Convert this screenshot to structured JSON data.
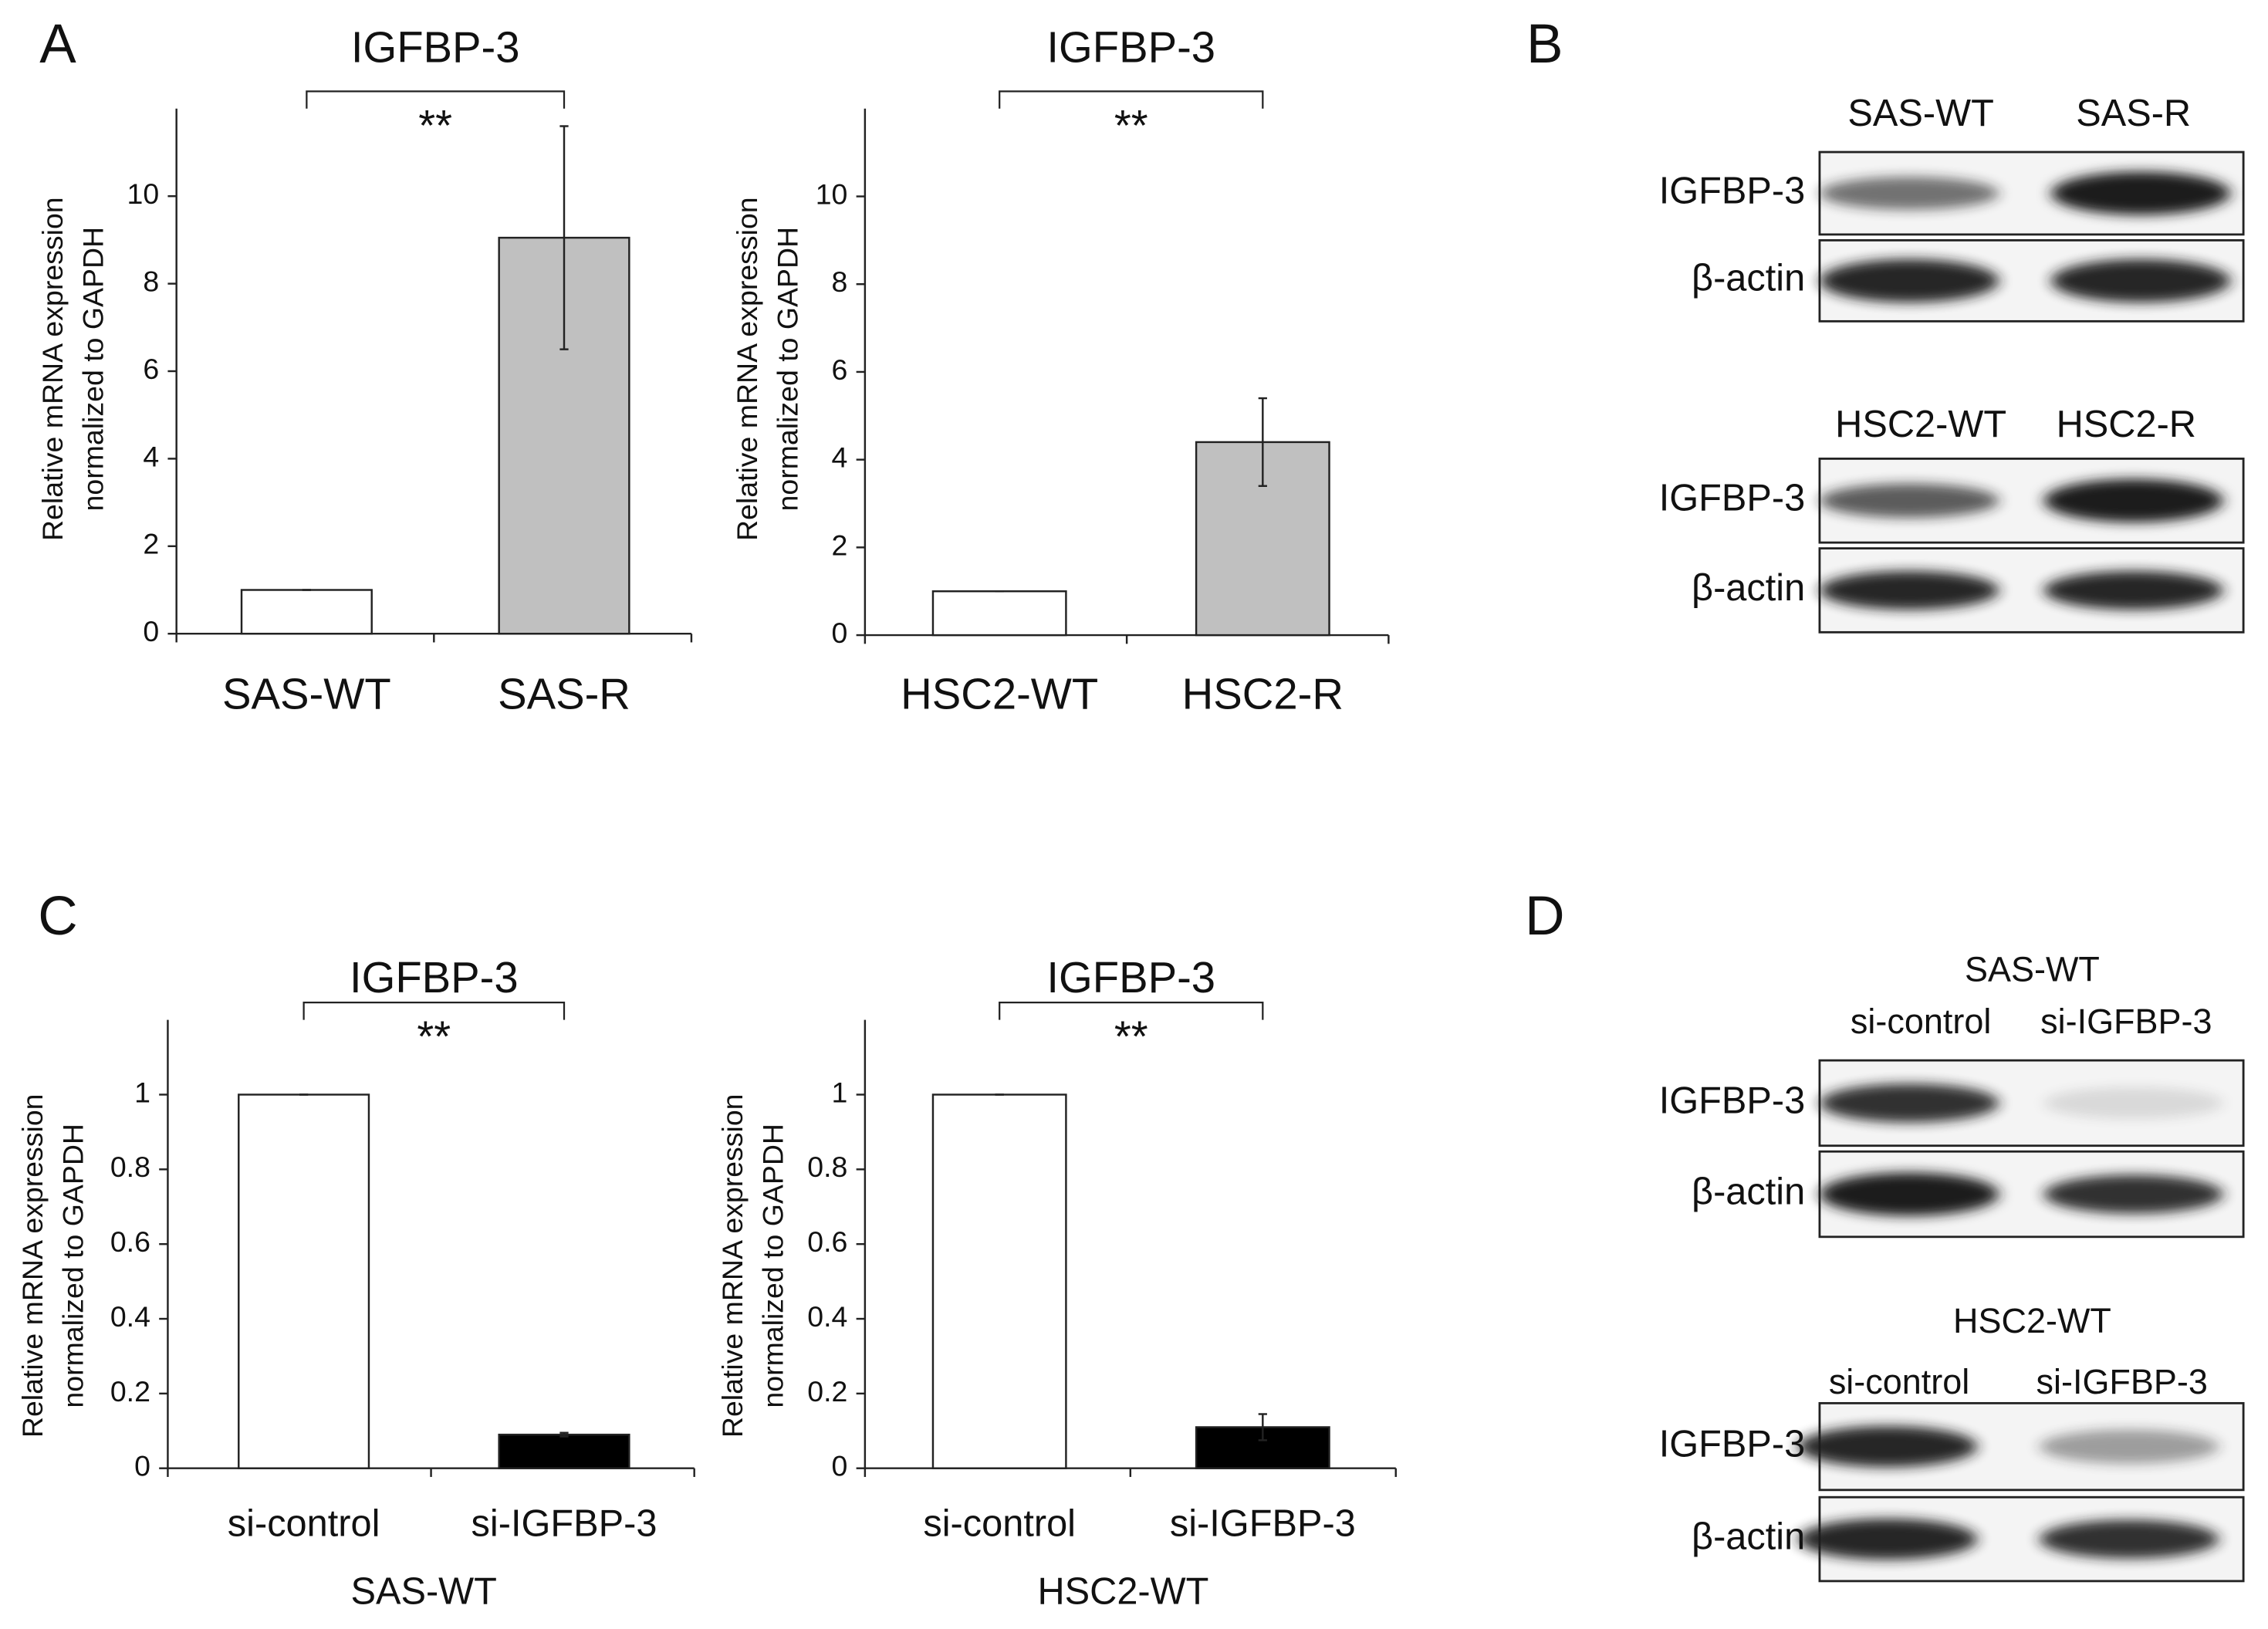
{
  "chart_data": [
    {
      "type": "bar",
      "title": "IGFBP-3",
      "ylabel": [
        "Relative mRNA expression",
        "normalized to GAPDH"
      ],
      "categories": [
        "SAS-WT",
        "SAS-R"
      ],
      "series": [
        {
          "values": [
            1,
            9.05
          ],
          "errors": [
            0,
            2.55
          ],
          "colors": [
            "#ffffff",
            "#c0c0c0"
          ]
        }
      ],
      "ylim": [
        0,
        12
      ],
      "yticks": [
        0,
        2,
        4,
        6,
        8,
        10
      ],
      "annotation": "**"
    },
    {
      "type": "bar",
      "title": "IGFBP-3",
      "ylabel": [
        "Relative mRNA expression",
        "normalized to GAPDH"
      ],
      "categories": [
        "HSC2-WT",
        "HSC2-R"
      ],
      "series": [
        {
          "values": [
            1,
            4.4
          ],
          "errors": [
            0,
            1.0
          ],
          "colors": [
            "#ffffff",
            "#c0c0c0"
          ]
        }
      ],
      "ylim": [
        0,
        12
      ],
      "yticks": [
        0,
        2,
        4,
        6,
        8,
        10
      ],
      "annotation": "**"
    },
    {
      "type": "bar",
      "title": "IGFBP-3",
      "ylabel": [
        "Relative mRNA expression",
        "normalized to GAPDH"
      ],
      "xlabel": "SAS-WT",
      "categories": [
        "si-control",
        "si-IGFBP-3"
      ],
      "series": [
        {
          "values": [
            1,
            0.09
          ],
          "errors": [
            0,
            0.005
          ],
          "colors": [
            "#ffffff",
            "#000000"
          ]
        }
      ],
      "ylim": [
        0,
        1.2
      ],
      "yticks": [
        0,
        0.2,
        0.4,
        0.6,
        0.8,
        1
      ],
      "annotation": "**"
    },
    {
      "type": "bar",
      "title": "IGFBP-3",
      "ylabel": [
        "Relative mRNA expression",
        "normalized to GAPDH"
      ],
      "xlabel": "HSC2-WT",
      "categories": [
        "si-control",
        "si-IGFBP-3"
      ],
      "series": [
        {
          "values": [
            1,
            0.11
          ],
          "errors": [
            0,
            0.035
          ],
          "colors": [
            "#ffffff",
            "#000000"
          ]
        }
      ],
      "ylim": [
        0,
        1.2
      ],
      "yticks": [
        0,
        0.2,
        0.4,
        0.6,
        0.8,
        1
      ],
      "annotation": "**"
    }
  ],
  "panels": [
    "A",
    "B",
    "C",
    "D"
  ],
  "blots": [
    {
      "columns": [
        "SAS-WT",
        "SAS-R"
      ],
      "rows": [
        "IGFBP-3",
        "β-actin"
      ]
    },
    {
      "columns": [
        "HSC2-WT",
        "HSC2-R"
      ],
      "rows": [
        "IGFBP-3",
        "β-actin"
      ]
    },
    {
      "group": "SAS-WT",
      "columns": [
        "si-control",
        "si-IGFBP-3"
      ],
      "rows": [
        "IGFBP-3",
        "β-actin"
      ]
    },
    {
      "group": "HSC2-WT",
      "columns": [
        "si-control",
        "si-IGFBP-3"
      ],
      "rows": [
        "IGFBP-3",
        "β-actin"
      ]
    }
  ]
}
